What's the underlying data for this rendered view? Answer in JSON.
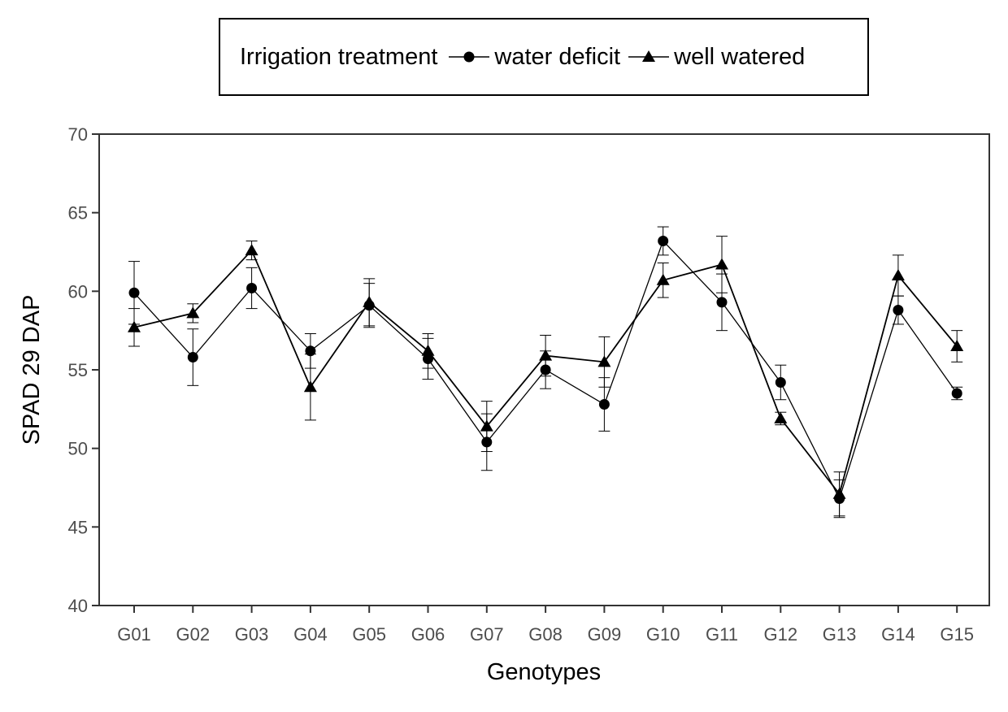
{
  "chart_data": {
    "type": "line",
    "legend_title": "Irrigation treatment",
    "legend_position": "top",
    "xlabel": "Genotypes",
    "ylabel": "SPAD 29 DAP",
    "ylim": [
      40,
      70
    ],
    "yticks": [
      40,
      45,
      50,
      55,
      60,
      65,
      70
    ],
    "grid": false,
    "categories": [
      "G01",
      "G02",
      "G03",
      "G04",
      "G05",
      "G06",
      "G07",
      "G08",
      "G09",
      "G10",
      "G11",
      "G12",
      "G13",
      "G14",
      "G15"
    ],
    "series": [
      {
        "name": "water deficit",
        "marker": "circle",
        "values": [
          59.9,
          55.8,
          60.2,
          56.2,
          59.1,
          55.7,
          50.4,
          55.0,
          52.8,
          63.2,
          59.3,
          54.2,
          46.8,
          58.8,
          53.5
        ],
        "errors": [
          2.0,
          1.8,
          1.3,
          1.1,
          1.4,
          1.3,
          1.8,
          1.2,
          1.7,
          0.9,
          1.8,
          1.1,
          1.2,
          0.9,
          0.4
        ]
      },
      {
        "name": "well watered",
        "marker": "triangle",
        "values": [
          57.7,
          58.6,
          62.6,
          53.9,
          59.3,
          56.2,
          51.4,
          55.9,
          55.5,
          60.7,
          61.7,
          51.9,
          47.1,
          61.0,
          56.5
        ],
        "errors": [
          1.2,
          0.6,
          0.6,
          2.1,
          1.5,
          1.1,
          1.6,
          1.3,
          1.6,
          1.1,
          1.8,
          0.4,
          1.4,
          1.3,
          1.0
        ]
      }
    ]
  }
}
